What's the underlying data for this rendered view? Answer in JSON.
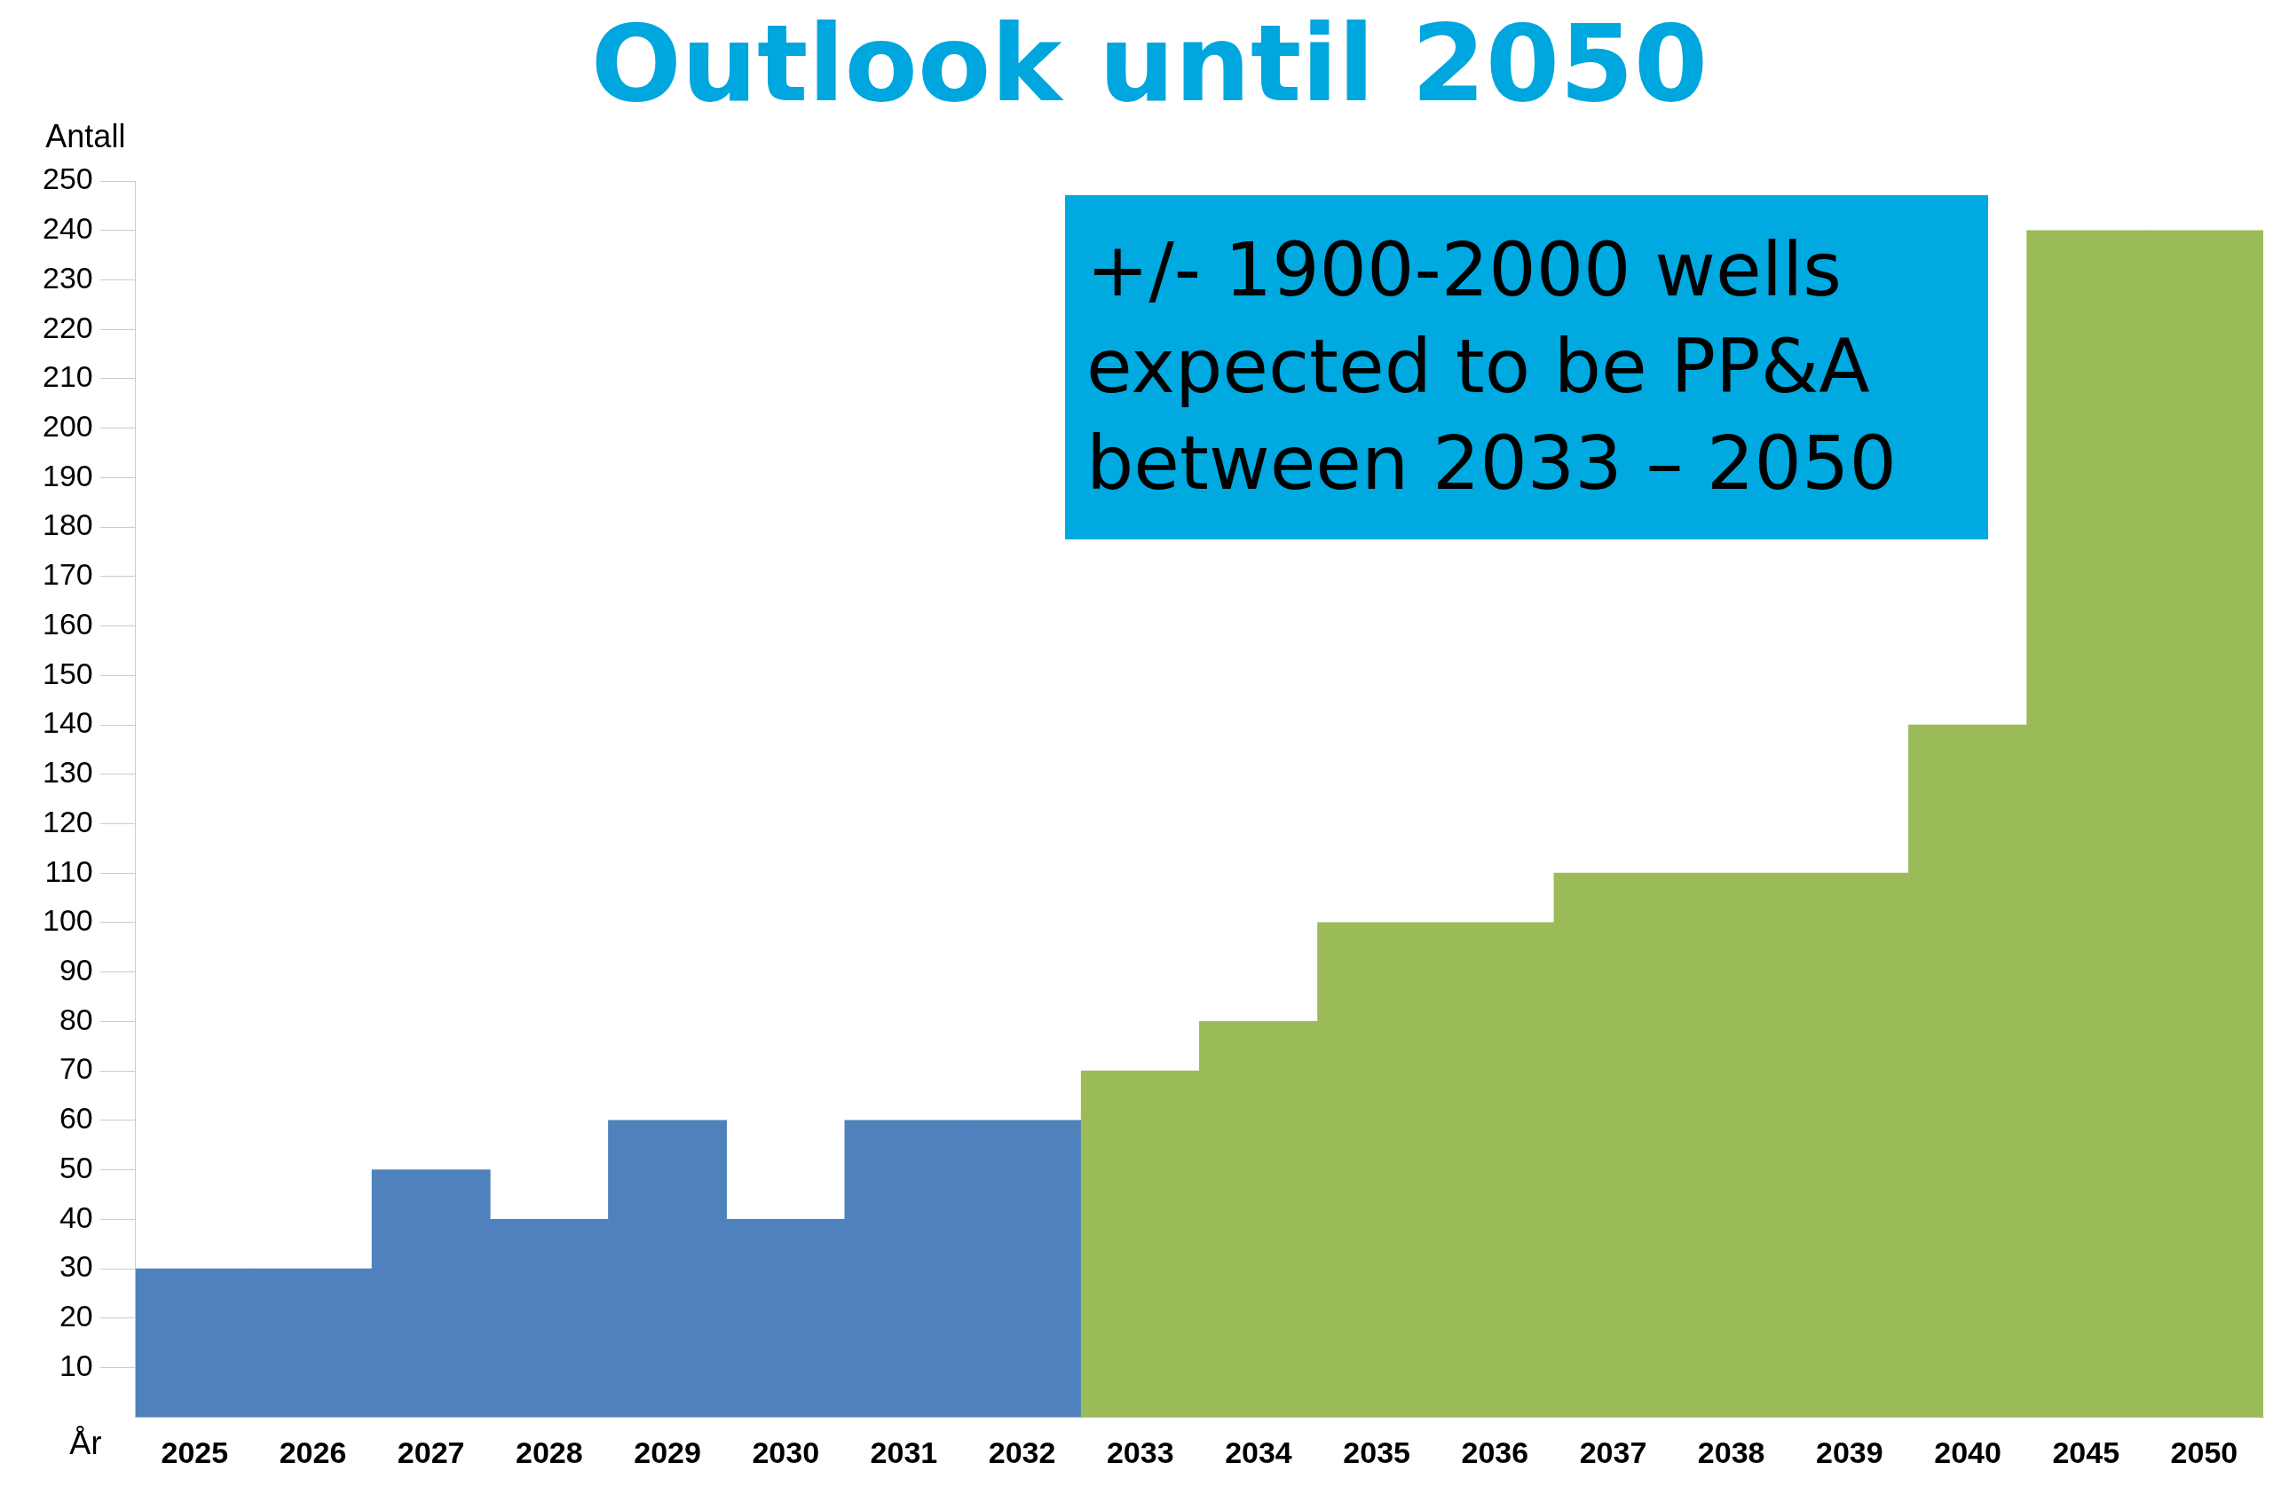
{
  "chart_data": {
    "type": "bar",
    "title": "Outlook until 2050",
    "xlabel": "År",
    "ylabel": "Antall",
    "categories": [
      "2025",
      "2026",
      "2027",
      "2028",
      "2029",
      "2030",
      "2031",
      "2032",
      "2033",
      "2034",
      "2035",
      "2036",
      "2037",
      "2038",
      "2039",
      "2040",
      "2045",
      "2050"
    ],
    "values": [
      30,
      30,
      50,
      40,
      60,
      40,
      60,
      60,
      70,
      80,
      100,
      100,
      110,
      110,
      110,
      140,
      240,
      240
    ],
    "colors": [
      "#4f81bd",
      "#4f81bd",
      "#4f81bd",
      "#4f81bd",
      "#4f81bd",
      "#4f81bd",
      "#4f81bd",
      "#4f81bd",
      "#9bbb59",
      "#9bbb59",
      "#9bbb59",
      "#9bbb59",
      "#9bbb59",
      "#9bbb59",
      "#9bbb59",
      "#9bbb59",
      "#9bbb59",
      "#9bbb59"
    ],
    "ylim": [
      0,
      250
    ],
    "yticks": [
      10,
      20,
      30,
      40,
      50,
      60,
      70,
      80,
      90,
      100,
      110,
      120,
      130,
      140,
      150,
      160,
      170,
      180,
      190,
      200,
      210,
      220,
      230,
      240,
      250
    ],
    "grid": false,
    "legend": false,
    "annotations": [
      "+/- 1900-2000 wells expected to be PP&A between 2033 – 2050"
    ]
  }
}
